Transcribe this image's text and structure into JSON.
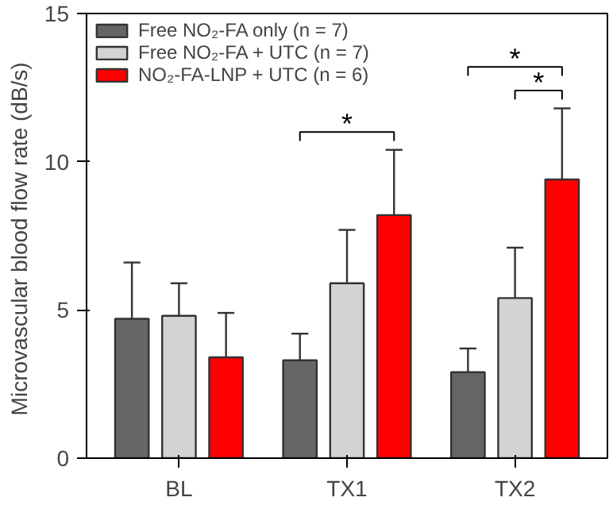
{
  "chart_data": {
    "type": "bar",
    "ylabel": "Microvascular blood flow rate  (dB/s)",
    "categories": [
      "BL",
      "TX1",
      "TX2"
    ],
    "series": [
      {
        "name": "Free NO₂-FA only (n = 7)",
        "color": "#666666",
        "values": [
          4.7,
          3.3,
          2.9
        ],
        "errors": [
          [
            4.7,
            6.6
          ],
          [
            3.3,
            4.2
          ],
          [
            2.9,
            3.7
          ]
        ]
      },
      {
        "name": "Free NO₂-FA + UTC (n = 7)",
        "color": "#d3d3d3",
        "values": [
          4.8,
          5.9,
          5.4
        ],
        "errors": [
          [
            4.8,
            5.9
          ],
          [
            5.9,
            7.7
          ],
          [
            5.4,
            7.1
          ]
        ]
      },
      {
        "name": "NO₂-FA-LNP + UTC (n = 6)",
        "color": "#ff0000",
        "values": [
          3.4,
          8.2,
          9.4
        ],
        "errors": [
          [
            3.4,
            4.9
          ],
          [
            8.2,
            10.4
          ],
          [
            9.4,
            11.8
          ]
        ]
      }
    ],
    "ylim": [
      0,
      15
    ],
    "yticks": [
      0,
      5,
      10,
      15
    ],
    "grid": false,
    "legend": "top left",
    "annotations": [
      "*",
      "*",
      "*"
    ]
  }
}
